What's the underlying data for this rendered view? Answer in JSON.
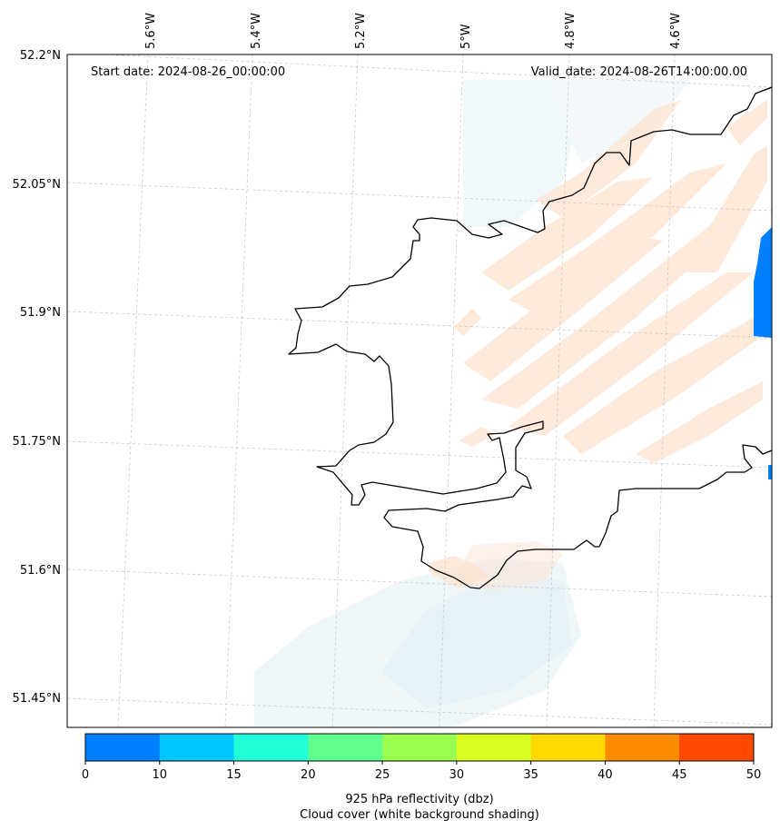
{
  "map": {
    "start_label": "Start date: 2024-08-26_00:00:00",
    "valid_label": "Valid_date: 2024-08-26T14:00:00.00",
    "lat_labels": [
      "52.2°N",
      "52.05°N",
      "51.9°N",
      "51.75°N",
      "51.6°N",
      "51.45°N"
    ],
    "lon_labels": [
      "5.6°W",
      "5.4°W",
      "5.2°W",
      "5°W",
      "4.8°W",
      "4.6°W"
    ],
    "land_color": "#ffffff",
    "coastline_color": "#000000",
    "grid_style": "dashed light gray"
  },
  "colorbar": {
    "ticks": [
      "0",
      "10",
      "15",
      "20",
      "25",
      "30",
      "35",
      "40",
      "45",
      "50"
    ],
    "colors": [
      "#0080ff",
      "#00c8ff",
      "#20ffd8",
      "#60ff90",
      "#98ff50",
      "#d8ff20",
      "#ffd800",
      "#ff8c00",
      "#ff4800"
    ],
    "label_line1": "925 hPa reflectivity (dbz)",
    "label_line2": "Cloud cover (white background shading)"
  }
}
